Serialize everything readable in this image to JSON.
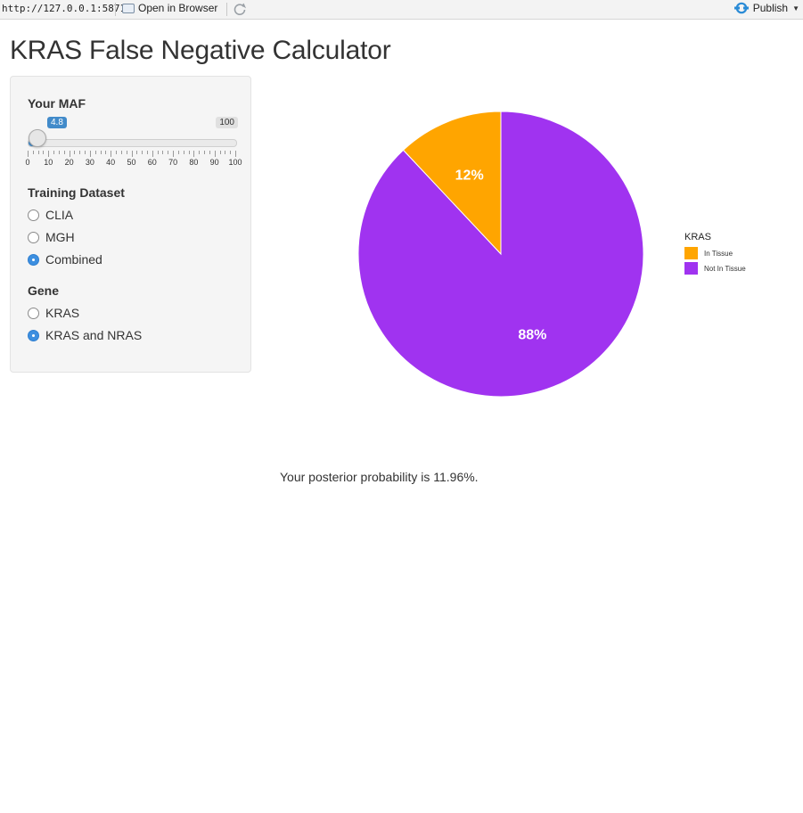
{
  "toolbar": {
    "url": "http://127.0.0.1:5871",
    "open_in_browser": "Open in Browser",
    "publish": "Publish",
    "publish_icon": "publish-icon",
    "refresh_icon": "refresh-icon",
    "open_icon": "window-icon"
  },
  "page": {
    "title": "KRAS False Negative Calculator"
  },
  "sidebar": {
    "maf": {
      "label": "Your MAF",
      "value": 4.8,
      "value_text": "4.8",
      "min": 0,
      "max": 100,
      "max_text": "100",
      "ticks": [
        "0",
        "10",
        "20",
        "30",
        "40",
        "50",
        "60",
        "70",
        "80",
        "90",
        "100"
      ],
      "accent": "#428bca"
    },
    "training": {
      "label": "Training Dataset",
      "options": [
        {
          "label": "CLIA",
          "selected": false
        },
        {
          "label": "MGH",
          "selected": false
        },
        {
          "label": "Combined",
          "selected": true
        }
      ]
    },
    "gene": {
      "label": "Gene",
      "options": [
        {
          "label": "KRAS",
          "selected": false
        },
        {
          "label": "KRAS and NRAS",
          "selected": true
        }
      ]
    }
  },
  "chart_data": {
    "type": "pie",
    "slices": [
      {
        "label": "In Tissue",
        "value": 12,
        "display": "12%",
        "color": "#ffa500"
      },
      {
        "label": "Not In Tissue",
        "value": 88,
        "display": "88%",
        "color": "#a033f0"
      }
    ],
    "legend_title": "KRAS",
    "legend_placement": "right"
  },
  "result": {
    "text": "Your posterior probability is 11.96%."
  }
}
